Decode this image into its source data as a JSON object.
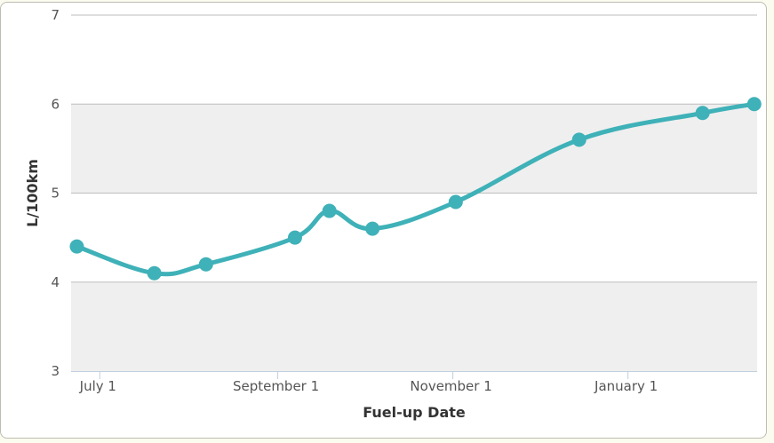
{
  "chart_data": {
    "type": "line",
    "title": "",
    "xlabel": "Fuel-up Date",
    "ylabel": "L/100km",
    "ylim": [
      3,
      7
    ],
    "yticks": [
      3,
      4,
      5,
      6,
      7
    ],
    "grid": "horizontal, alternating bands",
    "legend": "none",
    "x_ticks": [
      {
        "label": "July 1",
        "date": "2014-07-01"
      },
      {
        "label": "September 1",
        "date": "2014-09-01"
      },
      {
        "label": "November 1",
        "date": "2014-11-01"
      },
      {
        "label": "January 1",
        "date": "2015-01-01"
      }
    ],
    "xlim": [
      "2014-06-21",
      "2015-02-15"
    ],
    "series": [
      {
        "color": "#3fb1b8",
        "points": [
          {
            "x": "2014-06-23",
            "y": 4.4
          },
          {
            "x": "2014-07-20",
            "y": 4.1
          },
          {
            "x": "2014-08-07",
            "y": 4.2
          },
          {
            "x": "2014-09-07",
            "y": 4.5
          },
          {
            "x": "2014-09-19",
            "y": 4.8
          },
          {
            "x": "2014-10-04",
            "y": 4.6
          },
          {
            "x": "2014-11-02",
            "y": 4.9
          },
          {
            "x": "2014-12-15",
            "y": 5.6
          },
          {
            "x": "2015-01-27",
            "y": 5.9
          },
          {
            "x": "2015-02-14",
            "y": 6.0
          }
        ]
      }
    ]
  },
  "colors": {
    "band": "#efefef",
    "gridline": "#bebebe",
    "axis": "#c0d0e0",
    "series": "#3fb1b8"
  }
}
